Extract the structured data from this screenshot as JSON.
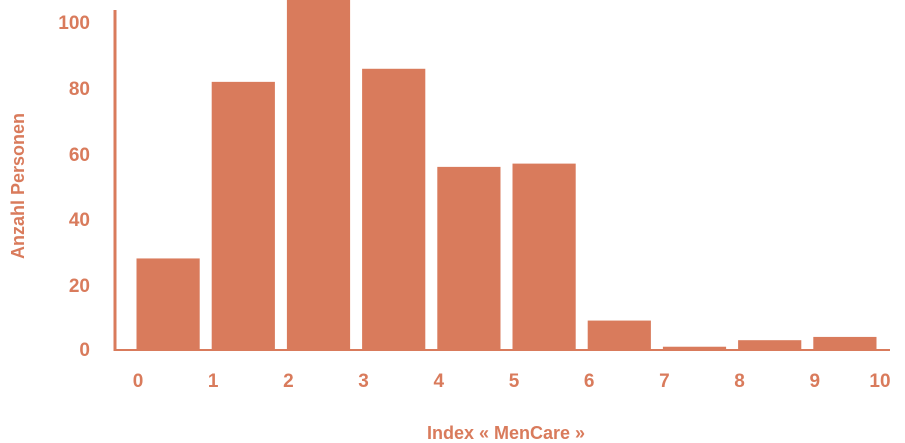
{
  "colors": {
    "accent": "#d97b5c"
  },
  "chart_data": {
    "type": "bar",
    "xlabel": "Index « MenCare »",
    "ylabel": "Anzahl Personen",
    "x_ticks": [
      "0",
      "1",
      "2",
      "3",
      "4",
      "5",
      "6",
      "7",
      "8",
      "9",
      "10"
    ],
    "y_ticks": [
      "0",
      "20",
      "40",
      "60",
      "80",
      "100"
    ],
    "ylim": [
      0,
      105
    ],
    "xlim": [
      0,
      10
    ],
    "bins": [
      {
        "x0": 0,
        "x1": 1,
        "value": 28
      },
      {
        "x0": 1,
        "x1": 2,
        "value": 82
      },
      {
        "x0": 2,
        "x1": 3,
        "value": 108
      },
      {
        "x0": 3,
        "x1": 4,
        "value": 86
      },
      {
        "x0": 4,
        "x1": 5,
        "value": 56
      },
      {
        "x0": 5,
        "x1": 6,
        "value": 57
      },
      {
        "x0": 6,
        "x1": 7,
        "value": 9
      },
      {
        "x0": 7,
        "x1": 8,
        "value": 1
      },
      {
        "x0": 8,
        "x1": 9,
        "value": 3
      },
      {
        "x0": 9,
        "x1": 10,
        "value": 4
      }
    ],
    "grid": false,
    "legend": "none"
  }
}
